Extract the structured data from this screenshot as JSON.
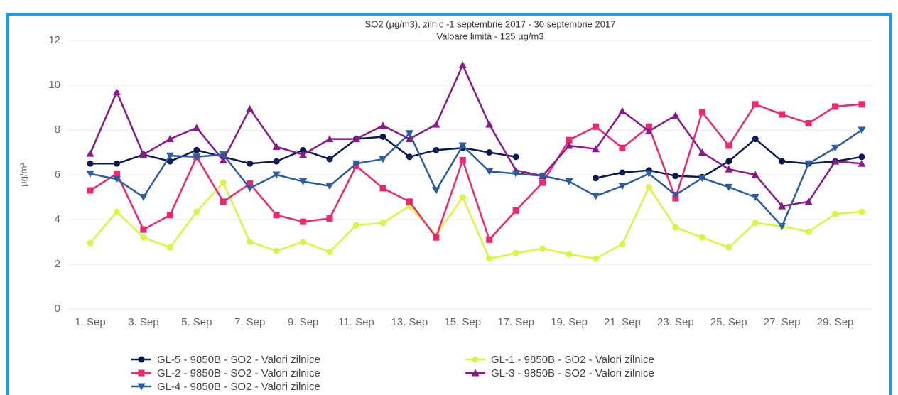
{
  "chart_data": {
    "type": "line",
    "title": "SO2 (µg/m3), zilnic -1 septembrie 2017 - 30 septembrie 2017",
    "subtitle": "Valoare limită - 125 µg/m3",
    "y_label": "µg/m³",
    "categories": [
      "1. Sep",
      null,
      "3. Sep",
      null,
      "5. Sep",
      null,
      "7. Sep",
      null,
      "9. Sep",
      null,
      "11. Sep",
      null,
      "13. Sep",
      null,
      "15. Sep",
      null,
      "17. Sep",
      null,
      "19. Sep",
      null,
      "21. Sep",
      null,
      "23. Sep",
      null,
      "25. Sep",
      null,
      "27. Sep",
      null,
      "29. Sep",
      null
    ],
    "ylim": [
      0,
      12
    ],
    "yticks": [
      0,
      2,
      4,
      6,
      8,
      10,
      12
    ],
    "grid": true,
    "legend": "bottom",
    "series": [
      {
        "name": "GL-5 - 9850B - SO2 - Valori zilnice",
        "color": "#0d1a4f",
        "marker": "circle",
        "values": [
          6.5,
          6.5,
          6.9,
          6.6,
          7.1,
          6.8,
          6.5,
          6.6,
          7.1,
          6.7,
          7.6,
          7.7,
          6.8,
          7.1,
          7.2,
          7.0,
          6.8,
          null,
          null,
          5.85,
          6.1,
          6.2,
          5.95,
          5.9,
          6.6,
          7.6,
          6.6,
          6.5,
          6.6,
          6.8
        ]
      },
      {
        "name": "GL-1 - 9850B - SO2 - Valori zilnice",
        "color": "#d9f542",
        "marker": "circle",
        "values": [
          2.95,
          4.35,
          3.2,
          2.75,
          4.35,
          5.65,
          3.0,
          2.6,
          3.0,
          2.55,
          3.75,
          3.85,
          4.6,
          3.3,
          5.0,
          2.25,
          2.5,
          2.7,
          2.45,
          2.25,
          2.9,
          5.45,
          3.65,
          3.2,
          2.75,
          3.85,
          3.7,
          3.45,
          4.25,
          4.35
        ]
      },
      {
        "name": "GL-2 - 9850B - SO2 - Valori zilnice",
        "color": "#f0266e",
        "marker": "square",
        "values": [
          5.3,
          6.05,
          3.55,
          4.2,
          6.8,
          4.8,
          5.6,
          4.2,
          3.9,
          4.05,
          6.4,
          5.4,
          4.8,
          3.2,
          6.65,
          3.1,
          4.4,
          5.65,
          7.55,
          8.15,
          7.2,
          8.15,
          4.95,
          8.8,
          7.3,
          9.15,
          8.7,
          8.3,
          9.05,
          9.15
        ]
      },
      {
        "name": "GL-3 - 9850B - SO2 - Valori zilnice",
        "color": "#8a1a8a",
        "marker": "triangle",
        "values": [
          6.95,
          9.7,
          6.9,
          7.6,
          8.1,
          6.65,
          8.95,
          7.25,
          6.9,
          7.6,
          7.6,
          8.2,
          7.6,
          8.25,
          10.9,
          8.25,
          6.2,
          5.95,
          7.3,
          7.15,
          8.85,
          7.95,
          8.65,
          7.0,
          6.25,
          6.0,
          4.6,
          4.8,
          6.6,
          6.5
        ]
      },
      {
        "name": "GL-4 - 9850B - SO2 - Valori zilnice",
        "color": "#2c5d9e",
        "marker": "triangle-down",
        "values": [
          6.05,
          5.8,
          5.0,
          6.85,
          6.8,
          6.9,
          5.4,
          6.0,
          5.7,
          5.5,
          6.5,
          6.7,
          7.85,
          5.3,
          7.3,
          6.15,
          6.05,
          5.95,
          5.7,
          5.05,
          5.5,
          6.05,
          5.1,
          5.85,
          5.45,
          5.0,
          3.7,
          6.5,
          7.2,
          8.0
        ]
      }
    ]
  }
}
